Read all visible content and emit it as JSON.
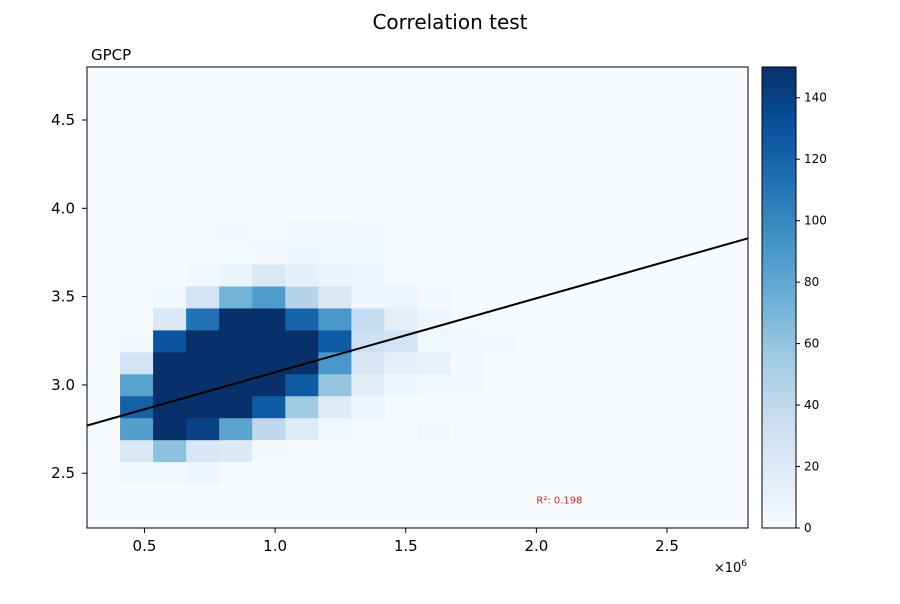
{
  "figure": {
    "title": "Correlation test"
  },
  "chart_data": {
    "type": "heatmap",
    "title": "GPCP",
    "xlabel": "",
    "ylabel": "",
    "x_offset_label": "×10",
    "x_offset_exponent": "6",
    "xlim": [
      0.28,
      2.81
    ],
    "ylim": [
      2.19,
      4.8
    ],
    "x_ticks": [
      0.5,
      1.0,
      1.5,
      2.0,
      2.5
    ],
    "x_tick_labels": [
      "0.5",
      "1.0",
      "1.5",
      "2.0",
      "2.5"
    ],
    "y_ticks": [
      2.5,
      3.0,
      3.5,
      4.0,
      4.5
    ],
    "y_tick_labels": [
      "2.5",
      "3.0",
      "3.5",
      "4.0",
      "4.5"
    ],
    "bin_x_start": 0.28,
    "bin_width_x": 0.1265,
    "bin_y_start": 2.19,
    "bin_width_y": 0.1243,
    "counts_rows_from_top": [
      [
        0,
        0,
        0,
        0,
        0,
        0,
        0,
        0,
        0,
        0,
        0,
        0,
        0,
        0,
        0,
        0,
        0,
        0,
        0,
        0
      ],
      [
        0,
        0,
        0,
        0,
        0,
        0,
        0,
        0,
        0,
        0,
        0,
        0,
        0,
        0,
        0,
        0,
        0,
        0,
        0,
        0
      ],
      [
        0,
        0,
        0,
        0,
        0,
        0,
        0,
        0,
        0,
        1,
        0,
        0,
        0,
        0,
        0,
        0,
        0,
        0,
        0,
        0
      ],
      [
        0,
        0,
        0,
        0,
        0,
        0,
        0,
        0,
        0,
        0,
        0,
        0,
        0,
        0,
        0,
        0,
        0,
        0,
        0,
        0
      ],
      [
        0,
        0,
        0,
        0,
        0,
        0,
        0,
        0,
        1,
        1,
        0,
        0,
        0,
        0,
        0,
        0,
        0,
        0,
        0,
        0
      ],
      [
        0,
        0,
        0,
        0,
        0,
        0,
        2,
        1,
        0,
        0,
        0,
        0,
        0,
        0,
        0,
        0,
        0,
        0,
        0,
        0
      ],
      [
        0,
        0,
        0,
        0,
        1,
        0,
        0,
        0,
        1,
        0,
        0,
        0,
        0,
        0,
        0,
        0,
        0,
        0,
        0,
        0
      ],
      [
        0,
        0,
        0,
        2,
        4,
        2,
        4,
        3,
        4,
        1,
        0,
        0,
        0,
        0,
        0,
        0,
        0,
        0,
        0,
        0
      ],
      [
        0,
        0,
        0,
        1,
        2,
        3,
        6,
        5,
        5,
        2,
        1,
        0,
        0,
        0,
        0,
        0,
        0,
        0,
        0,
        0
      ],
      [
        0,
        0,
        0,
        4,
        9,
        22,
        14,
        10,
        6,
        2,
        1,
        0,
        0,
        0,
        0,
        0,
        0,
        0,
        0,
        0
      ],
      [
        0,
        0,
        5,
        28,
        72,
        88,
        45,
        22,
        7,
        8,
        4,
        0,
        0,
        0,
        0,
        0,
        0,
        0,
        0,
        0
      ],
      [
        0,
        0,
        22,
        112,
        150,
        150,
        120,
        90,
        38,
        14,
        7,
        2,
        0,
        1,
        1,
        2,
        0,
        0,
        0,
        0
      ],
      [
        0,
        4,
        130,
        150,
        150,
        150,
        150,
        125,
        32,
        28,
        5,
        4,
        3,
        0,
        0,
        0,
        0,
        0,
        0,
        0
      ],
      [
        0,
        28,
        150,
        150,
        150,
        150,
        150,
        90,
        24,
        14,
        12,
        4,
        0,
        2,
        0,
        0,
        0,
        0,
        1,
        0
      ],
      [
        2,
        84,
        150,
        150,
        150,
        150,
        125,
        60,
        16,
        7,
        4,
        3,
        0,
        0,
        0,
        0,
        0,
        0,
        0,
        0
      ],
      [
        0,
        122,
        150,
        150,
        150,
        125,
        55,
        18,
        7,
        2,
        1,
        1,
        0,
        0,
        0,
        0,
        0,
        0,
        0,
        0
      ],
      [
        2,
        86,
        150,
        140,
        82,
        40,
        18,
        5,
        2,
        1,
        4,
        1,
        0,
        0,
        0,
        0,
        0,
        0,
        0,
        0
      ],
      [
        0,
        22,
        62,
        24,
        20,
        3,
        2,
        1,
        0,
        0,
        0,
        0,
        0,
        0,
        0,
        1,
        0,
        0,
        0,
        0
      ],
      [
        0,
        5,
        3,
        7,
        1,
        0,
        0,
        0,
        0,
        0,
        0,
        0,
        0,
        0,
        0,
        0,
        0,
        0,
        0,
        0
      ],
      [
        0,
        0,
        0,
        0,
        0,
        0,
        0,
        0,
        0,
        0,
        0,
        0,
        0,
        0,
        0,
        0,
        0,
        0,
        0,
        0
      ],
      [
        0,
        0,
        0,
        0,
        0,
        0,
        0,
        0,
        0,
        0,
        0,
        0,
        0,
        0,
        0,
        0,
        0,
        0,
        0,
        0
      ]
    ],
    "fit_line": {
      "x": [
        0.28,
        2.81
      ],
      "y": [
        2.77,
        3.83
      ],
      "color": "#000000"
    },
    "annotation": {
      "text": "R²: 0.198",
      "x": 2.0,
      "y": 2.33,
      "color": "#d62728"
    },
    "colorbar": {
      "colormap": "Blues",
      "vmin": 0,
      "vmax": 150,
      "ticks": [
        0,
        20,
        40,
        60,
        80,
        100,
        120,
        140
      ],
      "tick_labels": [
        "0",
        "20",
        "40",
        "60",
        "80",
        "100",
        "120",
        "140"
      ]
    },
    "grid": false
  }
}
